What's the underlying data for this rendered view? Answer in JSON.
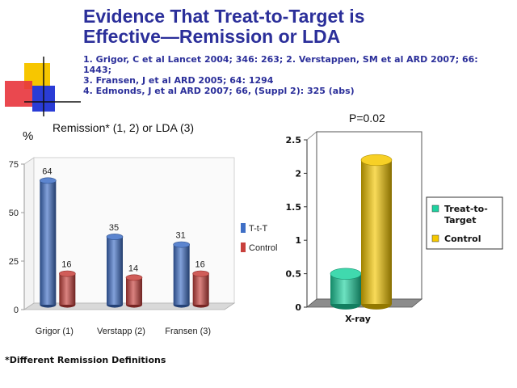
{
  "slide": {
    "title_line1": "Evidence That Treat-to-Target is",
    "title_line2": "Effective—Remission or LDA",
    "refs": [
      "1. Grigor, C et al Lancet 2004; 346: 263;  2. Verstappen, SM et al ARD 2007; 66:",
      "1443;",
      "3.  Fransen, J et al ARD 2005; 64: 1294",
      "4. Edmonds, J et al ARD 2007; 66, (Suppl 2): 325 (abs)"
    ],
    "footnote": "*Different Remission Definitions",
    "colors": {
      "title": "#2b2f9a",
      "logo_yellow": "#f7c600",
      "logo_red": "#e8343c",
      "logo_blue": "#2a3cd6"
    }
  },
  "chart_data": [
    {
      "type": "bar",
      "title": "Remission* (1, 2) or LDA (3)",
      "ylabel": "%",
      "categories": [
        "Grigor (1)",
        "Verstapp (2)",
        "Fransen (3)"
      ],
      "series": [
        {
          "name": "T-t-T",
          "values": [
            64,
            35,
            31
          ],
          "color": "#3f6fc6"
        },
        {
          "name": "Control",
          "values": [
            16,
            14,
            16
          ],
          "color": "#c8403c"
        }
      ],
      "ylim": [
        0,
        75
      ],
      "yticks": [
        "0",
        "25",
        "50",
        "75"
      ],
      "data_labels": true,
      "legend": "right",
      "style": "3d-cylinder"
    },
    {
      "type": "bar",
      "title": "P=0.02",
      "categories": [
        "X-ray"
      ],
      "series": [
        {
          "name": "Treat-to-Target",
          "values": [
            0.45
          ],
          "color": "#1ed2a0"
        },
        {
          "name": "Control",
          "values": [
            2.15
          ],
          "color": "#f5c800"
        }
      ],
      "ylim": [
        0,
        2.5
      ],
      "yticks": [
        "0",
        "0.5",
        "1",
        "1.5",
        "2",
        "2.5"
      ],
      "legend": "right",
      "style": "3d-cylinder"
    }
  ]
}
